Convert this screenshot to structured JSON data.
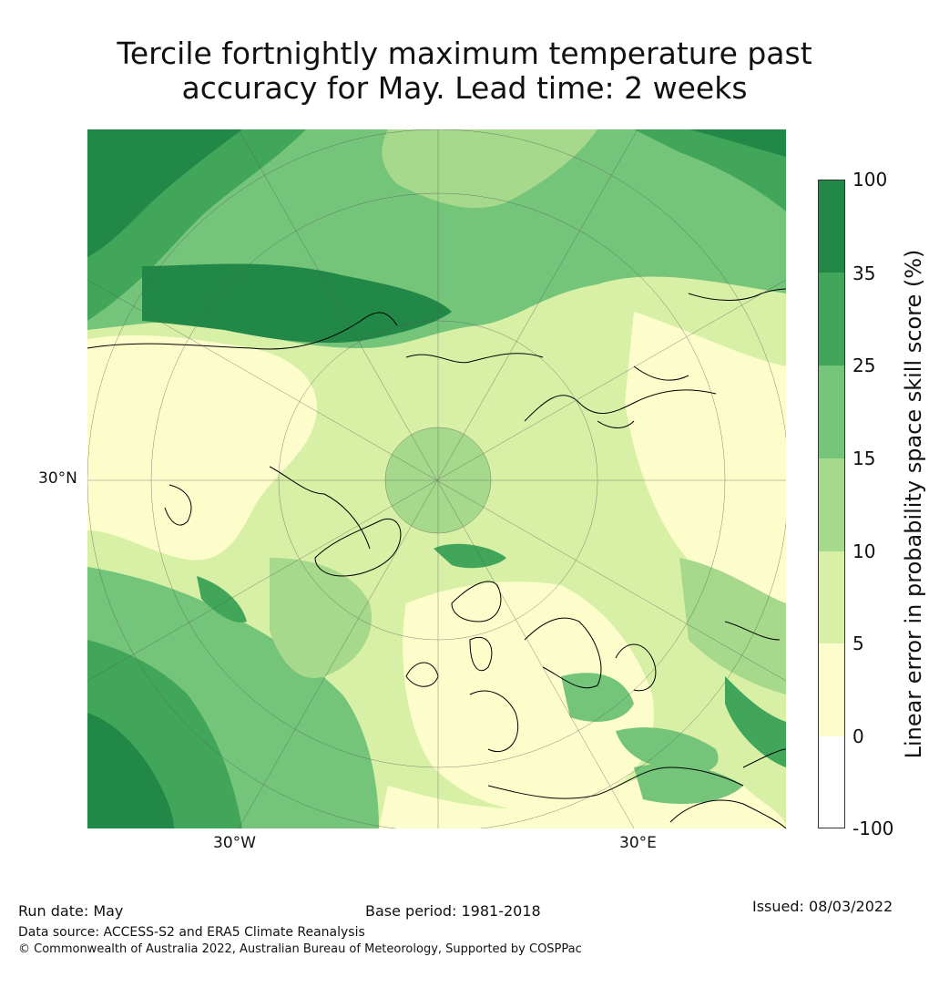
{
  "title_line1": "Tercile fortnightly maximum temperature past",
  "title_line2": "accuracy for May. Lead time: 2 weeks",
  "map_labels": {
    "lat_30n": "30°N",
    "lon_30w": "30°W",
    "lon_30e": "30°E"
  },
  "colorbar": {
    "title": "Linear error in probability space skill score (%)",
    "ticks": [
      "100",
      "35",
      "25",
      "15",
      "10",
      "5",
      "0",
      "-100"
    ],
    "bands": [
      {
        "range": "35 to 100",
        "color": "#228848"
      },
      {
        "range": "25 to 35",
        "color": "#42a65a"
      },
      {
        "range": "15 to 25",
        "color": "#74c47a"
      },
      {
        "range": "10 to 15",
        "color": "#a6d98c"
      },
      {
        "range": "5 to 10",
        "color": "#d8efa6"
      },
      {
        "range": "0 to 5",
        "color": "#fdfdcc"
      },
      {
        "range": "-100 to 0",
        "color": "#ffffff"
      }
    ]
  },
  "footer": {
    "run_date": "Run date: May",
    "base_period": "Base period: 1981-2018",
    "issued": "Issued: 08/03/2022",
    "data_source": "Data source: ACCESS-S2 and ERA5 Climate Reanalysis",
    "copyright": "© Commonwealth of Australia 2022, Australian Bureau of Meteorology, Supported by COSPPac"
  }
}
